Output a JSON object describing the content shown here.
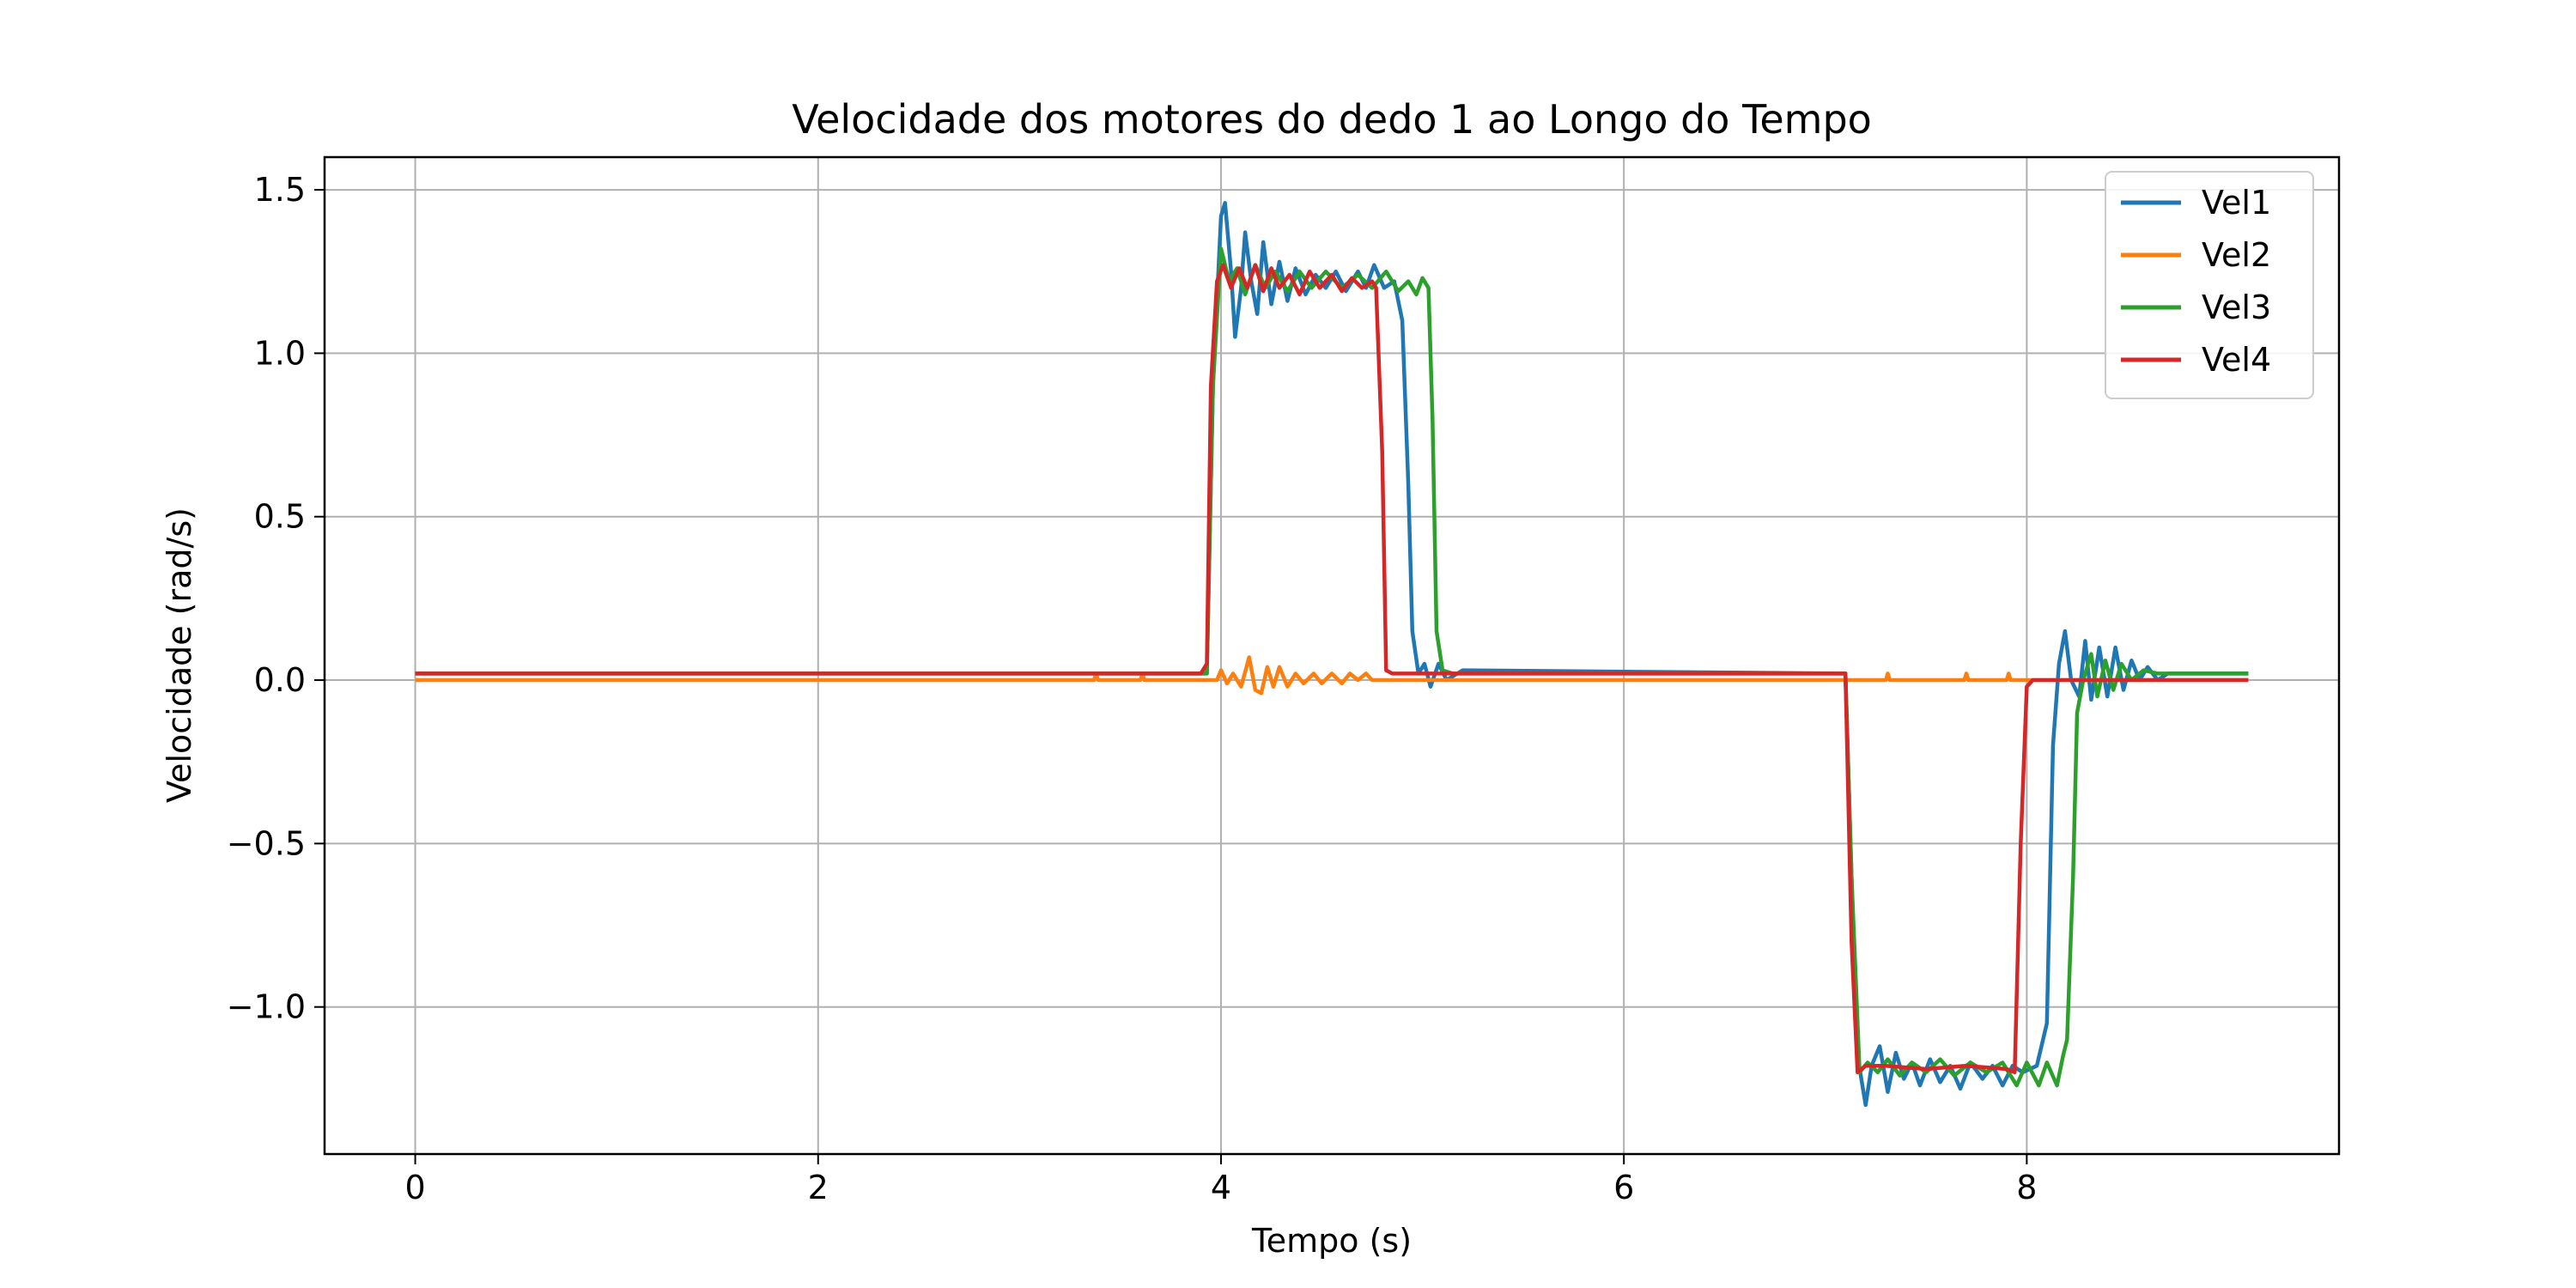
{
  "chart_data": {
    "type": "line",
    "title": "Velocidade dos motores do dedo 1 ao Longo do Tempo",
    "xlabel": "Tempo (s)",
    "ylabel": "Velocidade (rad/s)",
    "xlim": [
      -0.45,
      9.55
    ],
    "ylim": [
      -1.45,
      1.6
    ],
    "xticks": [
      0,
      2,
      4,
      6,
      8
    ],
    "yticks": [
      1.5,
      1.0,
      0.5,
      0.0,
      -0.5,
      -1.0
    ],
    "ytick_labels": [
      "1.5",
      "1.0",
      "0.5",
      "0.0",
      "−0.5",
      "−1.0"
    ],
    "grid": true,
    "legend_position": "top-right",
    "series": [
      {
        "name": "Vel1",
        "color": "#1f77b4",
        "points": [
          [
            0,
            0.02
          ],
          [
            3.93,
            0.02
          ],
          [
            3.96,
            0.9
          ],
          [
            4.0,
            1.42
          ],
          [
            4.02,
            1.46
          ],
          [
            4.05,
            1.25
          ],
          [
            4.07,
            1.05
          ],
          [
            4.1,
            1.2
          ],
          [
            4.12,
            1.37
          ],
          [
            4.15,
            1.22
          ],
          [
            4.18,
            1.12
          ],
          [
            4.21,
            1.34
          ],
          [
            4.25,
            1.15
          ],
          [
            4.29,
            1.28
          ],
          [
            4.33,
            1.16
          ],
          [
            4.37,
            1.26
          ],
          [
            4.42,
            1.18
          ],
          [
            4.47,
            1.24
          ],
          [
            4.52,
            1.2
          ],
          [
            4.57,
            1.25
          ],
          [
            4.62,
            1.19
          ],
          [
            4.68,
            1.25
          ],
          [
            4.72,
            1.2
          ],
          [
            4.76,
            1.27
          ],
          [
            4.81,
            1.2
          ],
          [
            4.86,
            1.22
          ],
          [
            4.9,
            1.1
          ],
          [
            4.93,
            0.6
          ],
          [
            4.95,
            0.15
          ],
          [
            4.98,
            0.02
          ],
          [
            5.01,
            0.05
          ],
          [
            5.04,
            -0.02
          ],
          [
            5.08,
            0.05
          ],
          [
            5.12,
            0.0
          ],
          [
            5.2,
            0.03
          ],
          [
            7.1,
            0.02
          ],
          [
            7.13,
            -0.6
          ],
          [
            7.16,
            -1.15
          ],
          [
            7.2,
            -1.3
          ],
          [
            7.23,
            -1.18
          ],
          [
            7.27,
            -1.12
          ],
          [
            7.31,
            -1.26
          ],
          [
            7.35,
            -1.14
          ],
          [
            7.39,
            -1.22
          ],
          [
            7.43,
            -1.17
          ],
          [
            7.47,
            -1.24
          ],
          [
            7.52,
            -1.16
          ],
          [
            7.57,
            -1.23
          ],
          [
            7.62,
            -1.18
          ],
          [
            7.67,
            -1.25
          ],
          [
            7.72,
            -1.17
          ],
          [
            7.78,
            -1.22
          ],
          [
            7.83,
            -1.18
          ],
          [
            7.88,
            -1.24
          ],
          [
            7.93,
            -1.18
          ],
          [
            7.98,
            -1.2
          ],
          [
            8.05,
            -1.18
          ],
          [
            8.1,
            -1.05
          ],
          [
            8.13,
            -0.2
          ],
          [
            8.16,
            0.05
          ],
          [
            8.19,
            0.15
          ],
          [
            8.22,
            0.0
          ],
          [
            8.26,
            -0.05
          ],
          [
            8.29,
            0.12
          ],
          [
            8.32,
            -0.06
          ],
          [
            8.36,
            0.1
          ],
          [
            8.4,
            -0.05
          ],
          [
            8.44,
            0.1
          ],
          [
            8.48,
            -0.03
          ],
          [
            8.52,
            0.06
          ],
          [
            8.56,
            0.0
          ],
          [
            8.6,
            0.04
          ],
          [
            8.65,
            0.0
          ],
          [
            8.7,
            0.02
          ],
          [
            9.1,
            0.02
          ]
        ]
      },
      {
        "name": "Vel2",
        "color": "#ff7f0e",
        "points": [
          [
            0,
            0.0
          ],
          [
            3.37,
            0.0
          ],
          [
            3.38,
            0.02
          ],
          [
            3.39,
            0.0
          ],
          [
            3.6,
            0.0
          ],
          [
            3.61,
            0.02
          ],
          [
            3.62,
            0.0
          ],
          [
            3.98,
            0.0
          ],
          [
            4.0,
            0.03
          ],
          [
            4.03,
            -0.01
          ],
          [
            4.06,
            0.02
          ],
          [
            4.1,
            -0.02
          ],
          [
            4.14,
            0.07
          ],
          [
            4.17,
            -0.03
          ],
          [
            4.2,
            -0.04
          ],
          [
            4.23,
            0.04
          ],
          [
            4.26,
            -0.02
          ],
          [
            4.29,
            0.04
          ],
          [
            4.33,
            -0.02
          ],
          [
            4.37,
            0.02
          ],
          [
            4.41,
            -0.01
          ],
          [
            4.46,
            0.02
          ],
          [
            4.5,
            -0.01
          ],
          [
            4.55,
            0.02
          ],
          [
            4.6,
            -0.01
          ],
          [
            4.64,
            0.02
          ],
          [
            4.68,
            0.0
          ],
          [
            4.72,
            0.02
          ],
          [
            4.75,
            0.0
          ],
          [
            7.3,
            0.0
          ],
          [
            7.31,
            0.02
          ],
          [
            7.32,
            0.0
          ],
          [
            7.69,
            0.0
          ],
          [
            7.7,
            0.02
          ],
          [
            7.71,
            0.0
          ],
          [
            7.9,
            0.0
          ],
          [
            7.91,
            0.02
          ],
          [
            7.92,
            0.0
          ],
          [
            9.1,
            0.0
          ]
        ]
      },
      {
        "name": "Vel3",
        "color": "#2ca02c",
        "points": [
          [
            0,
            0.02
          ],
          [
            3.93,
            0.02
          ],
          [
            3.96,
            0.9
          ],
          [
            4.0,
            1.32
          ],
          [
            4.04,
            1.22
          ],
          [
            4.08,
            1.26
          ],
          [
            4.12,
            1.18
          ],
          [
            4.17,
            1.27
          ],
          [
            4.22,
            1.2
          ],
          [
            4.27,
            1.25
          ],
          [
            4.33,
            1.19
          ],
          [
            4.39,
            1.25
          ],
          [
            4.45,
            1.2
          ],
          [
            4.52,
            1.25
          ],
          [
            4.6,
            1.2
          ],
          [
            4.68,
            1.24
          ],
          [
            4.75,
            1.2
          ],
          [
            4.82,
            1.25
          ],
          [
            4.88,
            1.19
          ],
          [
            4.93,
            1.22
          ],
          [
            4.97,
            1.18
          ],
          [
            5.0,
            1.23
          ],
          [
            5.03,
            1.2
          ],
          [
            5.05,
            0.8
          ],
          [
            5.07,
            0.15
          ],
          [
            5.1,
            0.03
          ],
          [
            5.15,
            0.02
          ],
          [
            7.1,
            0.02
          ],
          [
            7.13,
            -0.6
          ],
          [
            7.17,
            -1.2
          ],
          [
            7.21,
            -1.17
          ],
          [
            7.26,
            -1.2
          ],
          [
            7.31,
            -1.16
          ],
          [
            7.37,
            -1.21
          ],
          [
            7.43,
            -1.17
          ],
          [
            7.5,
            -1.2
          ],
          [
            7.57,
            -1.16
          ],
          [
            7.64,
            -1.21
          ],
          [
            7.72,
            -1.17
          ],
          [
            7.8,
            -1.2
          ],
          [
            7.88,
            -1.17
          ],
          [
            7.95,
            -1.24
          ],
          [
            8.0,
            -1.17
          ],
          [
            8.06,
            -1.24
          ],
          [
            8.1,
            -1.17
          ],
          [
            8.15,
            -1.24
          ],
          [
            8.18,
            -1.15
          ],
          [
            8.2,
            -1.1
          ],
          [
            8.23,
            -0.6
          ],
          [
            8.25,
            -0.1
          ],
          [
            8.28,
            0.0
          ],
          [
            8.32,
            0.08
          ],
          [
            8.35,
            -0.05
          ],
          [
            8.39,
            0.06
          ],
          [
            8.43,
            -0.03
          ],
          [
            8.47,
            0.05
          ],
          [
            8.52,
            0.0
          ],
          [
            8.58,
            0.03
          ],
          [
            8.65,
            0.02
          ],
          [
            9.1,
            0.02
          ]
        ]
      },
      {
        "name": "Vel4",
        "color": "#d62728",
        "points": [
          [
            0,
            0.02
          ],
          [
            3.9,
            0.02
          ],
          [
            3.93,
            0.05
          ],
          [
            3.95,
            0.9
          ],
          [
            3.98,
            1.22
          ],
          [
            4.01,
            1.27
          ],
          [
            4.05,
            1.2
          ],
          [
            4.09,
            1.26
          ],
          [
            4.13,
            1.2
          ],
          [
            4.17,
            1.27
          ],
          [
            4.21,
            1.19
          ],
          [
            4.25,
            1.26
          ],
          [
            4.29,
            1.2
          ],
          [
            4.34,
            1.24
          ],
          [
            4.39,
            1.18
          ],
          [
            4.44,
            1.25
          ],
          [
            4.49,
            1.2
          ],
          [
            4.55,
            1.24
          ],
          [
            4.6,
            1.19
          ],
          [
            4.65,
            1.23
          ],
          [
            4.7,
            1.2
          ],
          [
            4.75,
            1.22
          ],
          [
            4.77,
            1.2
          ],
          [
            4.8,
            0.7
          ],
          [
            4.82,
            0.03
          ],
          [
            4.85,
            0.02
          ],
          [
            7.1,
            0.02
          ],
          [
            7.13,
            -0.8
          ],
          [
            7.16,
            -1.2
          ],
          [
            7.2,
            -1.18
          ],
          [
            7.3,
            -1.18
          ],
          [
            7.5,
            -1.19
          ],
          [
            7.7,
            -1.18
          ],
          [
            7.9,
            -1.19
          ],
          [
            7.94,
            -1.2
          ],
          [
            7.97,
            -0.5
          ],
          [
            8.0,
            -0.02
          ],
          [
            8.03,
            0.0
          ],
          [
            9.1,
            0.0
          ]
        ]
      }
    ]
  }
}
